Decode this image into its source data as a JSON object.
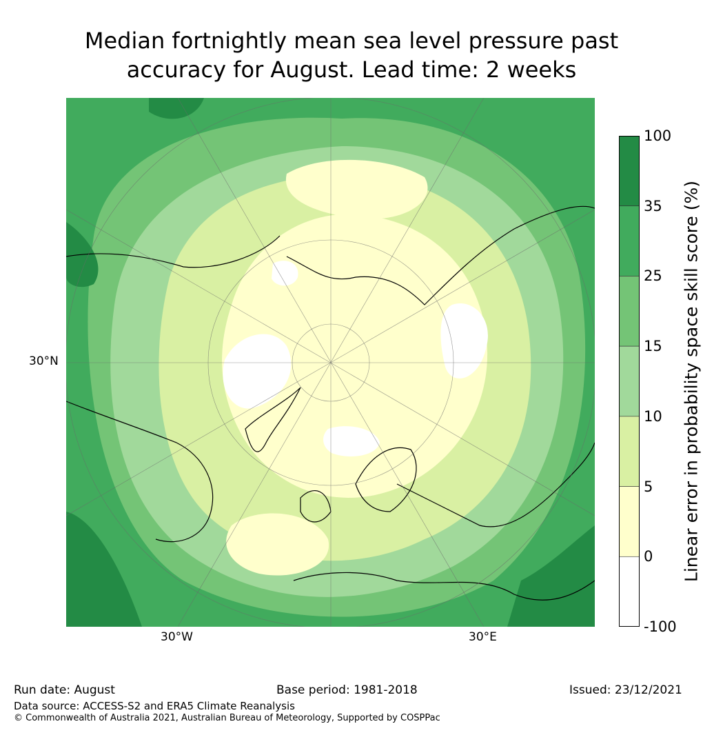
{
  "title": {
    "line1": "Median fortnightly mean sea level pressure past",
    "line2": "accuracy for August. Lead time: 2 weeks"
  },
  "map": {
    "projection": "north-polar-stereographic",
    "tick_labels": {
      "left": "30°N",
      "bottom_left": "30°W",
      "bottom_right": "30°E"
    }
  },
  "legend": {
    "title": "Linear error in probability space skill score (%)",
    "labels": [
      "100",
      "35",
      "25",
      "15",
      "10",
      "5",
      "0",
      "-100"
    ],
    "colors": [
      "#238b45",
      "#41ab5d",
      "#74c476",
      "#a1d99b",
      "#d9f0a3",
      "#ffffcc",
      "#ffffff"
    ]
  },
  "footer": {
    "run_date": "Run date: August",
    "base_period": "Base period: 1981-2018",
    "issued": "Issued: 23/12/2021",
    "data_source": "Data source: ACCESS-S2 and ERA5 Climate Reanalysis",
    "copyright": "© Commonwealth of Australia 2021, Australian Bureau of Meteorology, Supported by COSPPac"
  }
}
